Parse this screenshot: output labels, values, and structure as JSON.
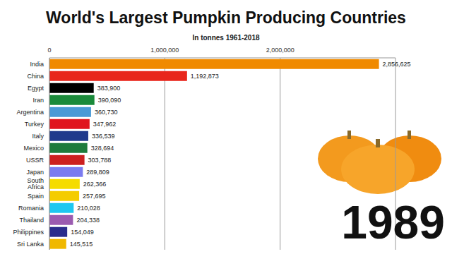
{
  "chart_data": {
    "type": "bar",
    "orientation": "horizontal",
    "title": "World's Largest Pumpkin Producing Countries",
    "subtitle": "In tonnes 1961-2018",
    "annotation": "1989",
    "categories": [
      "India",
      "China",
      "Egypt",
      "Iran",
      "Argentina",
      "Turkey",
      "Italy",
      "Mexico",
      "USSR",
      "Japan",
      "South Africa",
      "Spain",
      "Romania",
      "Thailand",
      "Philippines",
      "Sri Lanka"
    ],
    "values": [
      2856625,
      1192873,
      383900,
      390090,
      360730,
      347962,
      336539,
      328694,
      303788,
      289809,
      262366,
      257695,
      210028,
      204338,
      154049,
      145515
    ],
    "value_labels": [
      "2,856,625",
      "1,192,873",
      "383,900",
      "390,090",
      "360,730",
      "347,962",
      "336,539",
      "328,694",
      "303,788",
      "289,809",
      "262,366",
      "257,695",
      "210,028",
      "204,338",
      "154,049",
      "145,515"
    ],
    "colors": [
      "#f08a00",
      "#e8261c",
      "#000000",
      "#1a8a3a",
      "#4a9ad6",
      "#e0161e",
      "#203a8c",
      "#1e7b3c",
      "#cc1f1f",
      "#7b7bf0",
      "#f5dc00",
      "#f4cc00",
      "#1ec8f0",
      "#9b5bb0",
      "#2b2d8c",
      "#f0b800"
    ],
    "xlim": [
      0,
      3000000
    ],
    "xticks": [
      0,
      {
        "value": 1000000,
        "label": "1,000,000"
      },
      {
        "value": 2000000,
        "label": "2,000,000"
      }
    ],
    "grid": true,
    "data_labels": true
  }
}
